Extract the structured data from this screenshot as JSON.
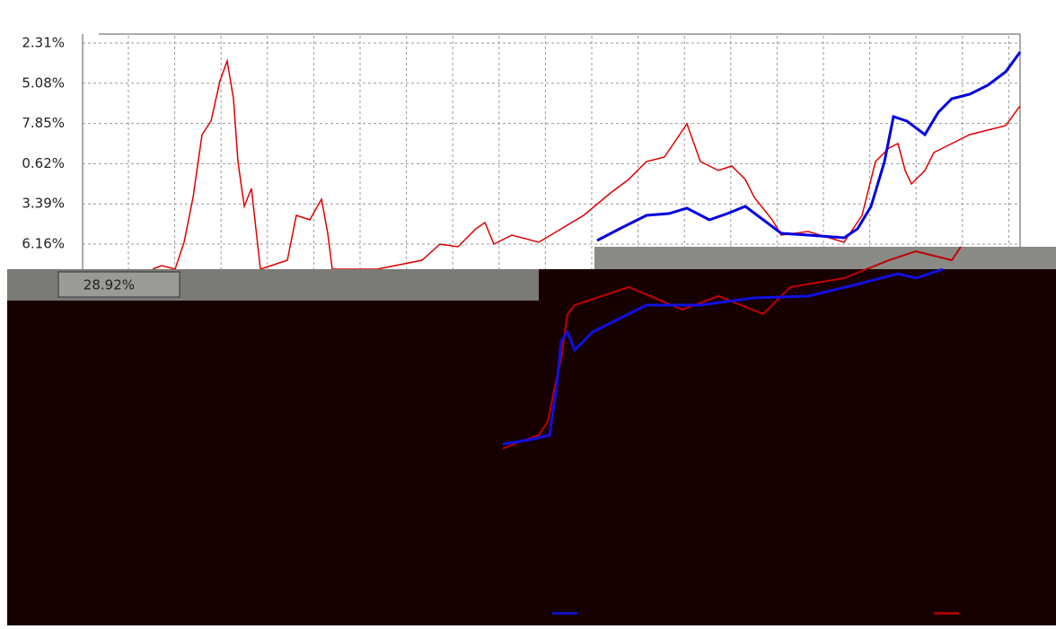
{
  "axis_labels": [
    "2.31%",
    "5.08%",
    "7.85%",
    "0.62%",
    "3.39%",
    "6.16%"
  ],
  "readout": "28.92%"
}
